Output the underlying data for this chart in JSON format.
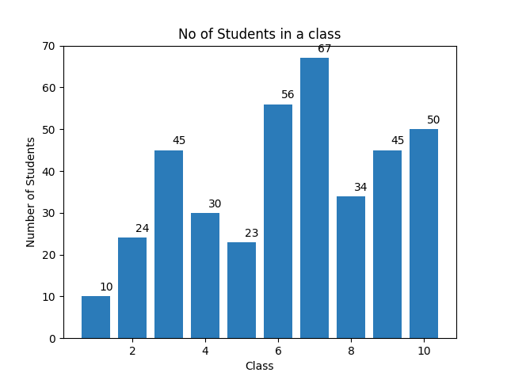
{
  "categories": [
    1,
    2,
    3,
    4,
    5,
    6,
    7,
    8,
    9,
    10
  ],
  "values": [
    10,
    24,
    45,
    30,
    23,
    56,
    67,
    34,
    45,
    50
  ],
  "bar_color": "#2b7bb9",
  "title": "No of Students in a class",
  "xlabel": "Class",
  "ylabel": "Number of Students",
  "ylim": [
    0,
    70
  ],
  "title_fontsize": 12,
  "label_fontsize": 10,
  "annotation_fontsize": 10,
  "figsize": [
    6.4,
    4.8
  ],
  "dpi": 100
}
